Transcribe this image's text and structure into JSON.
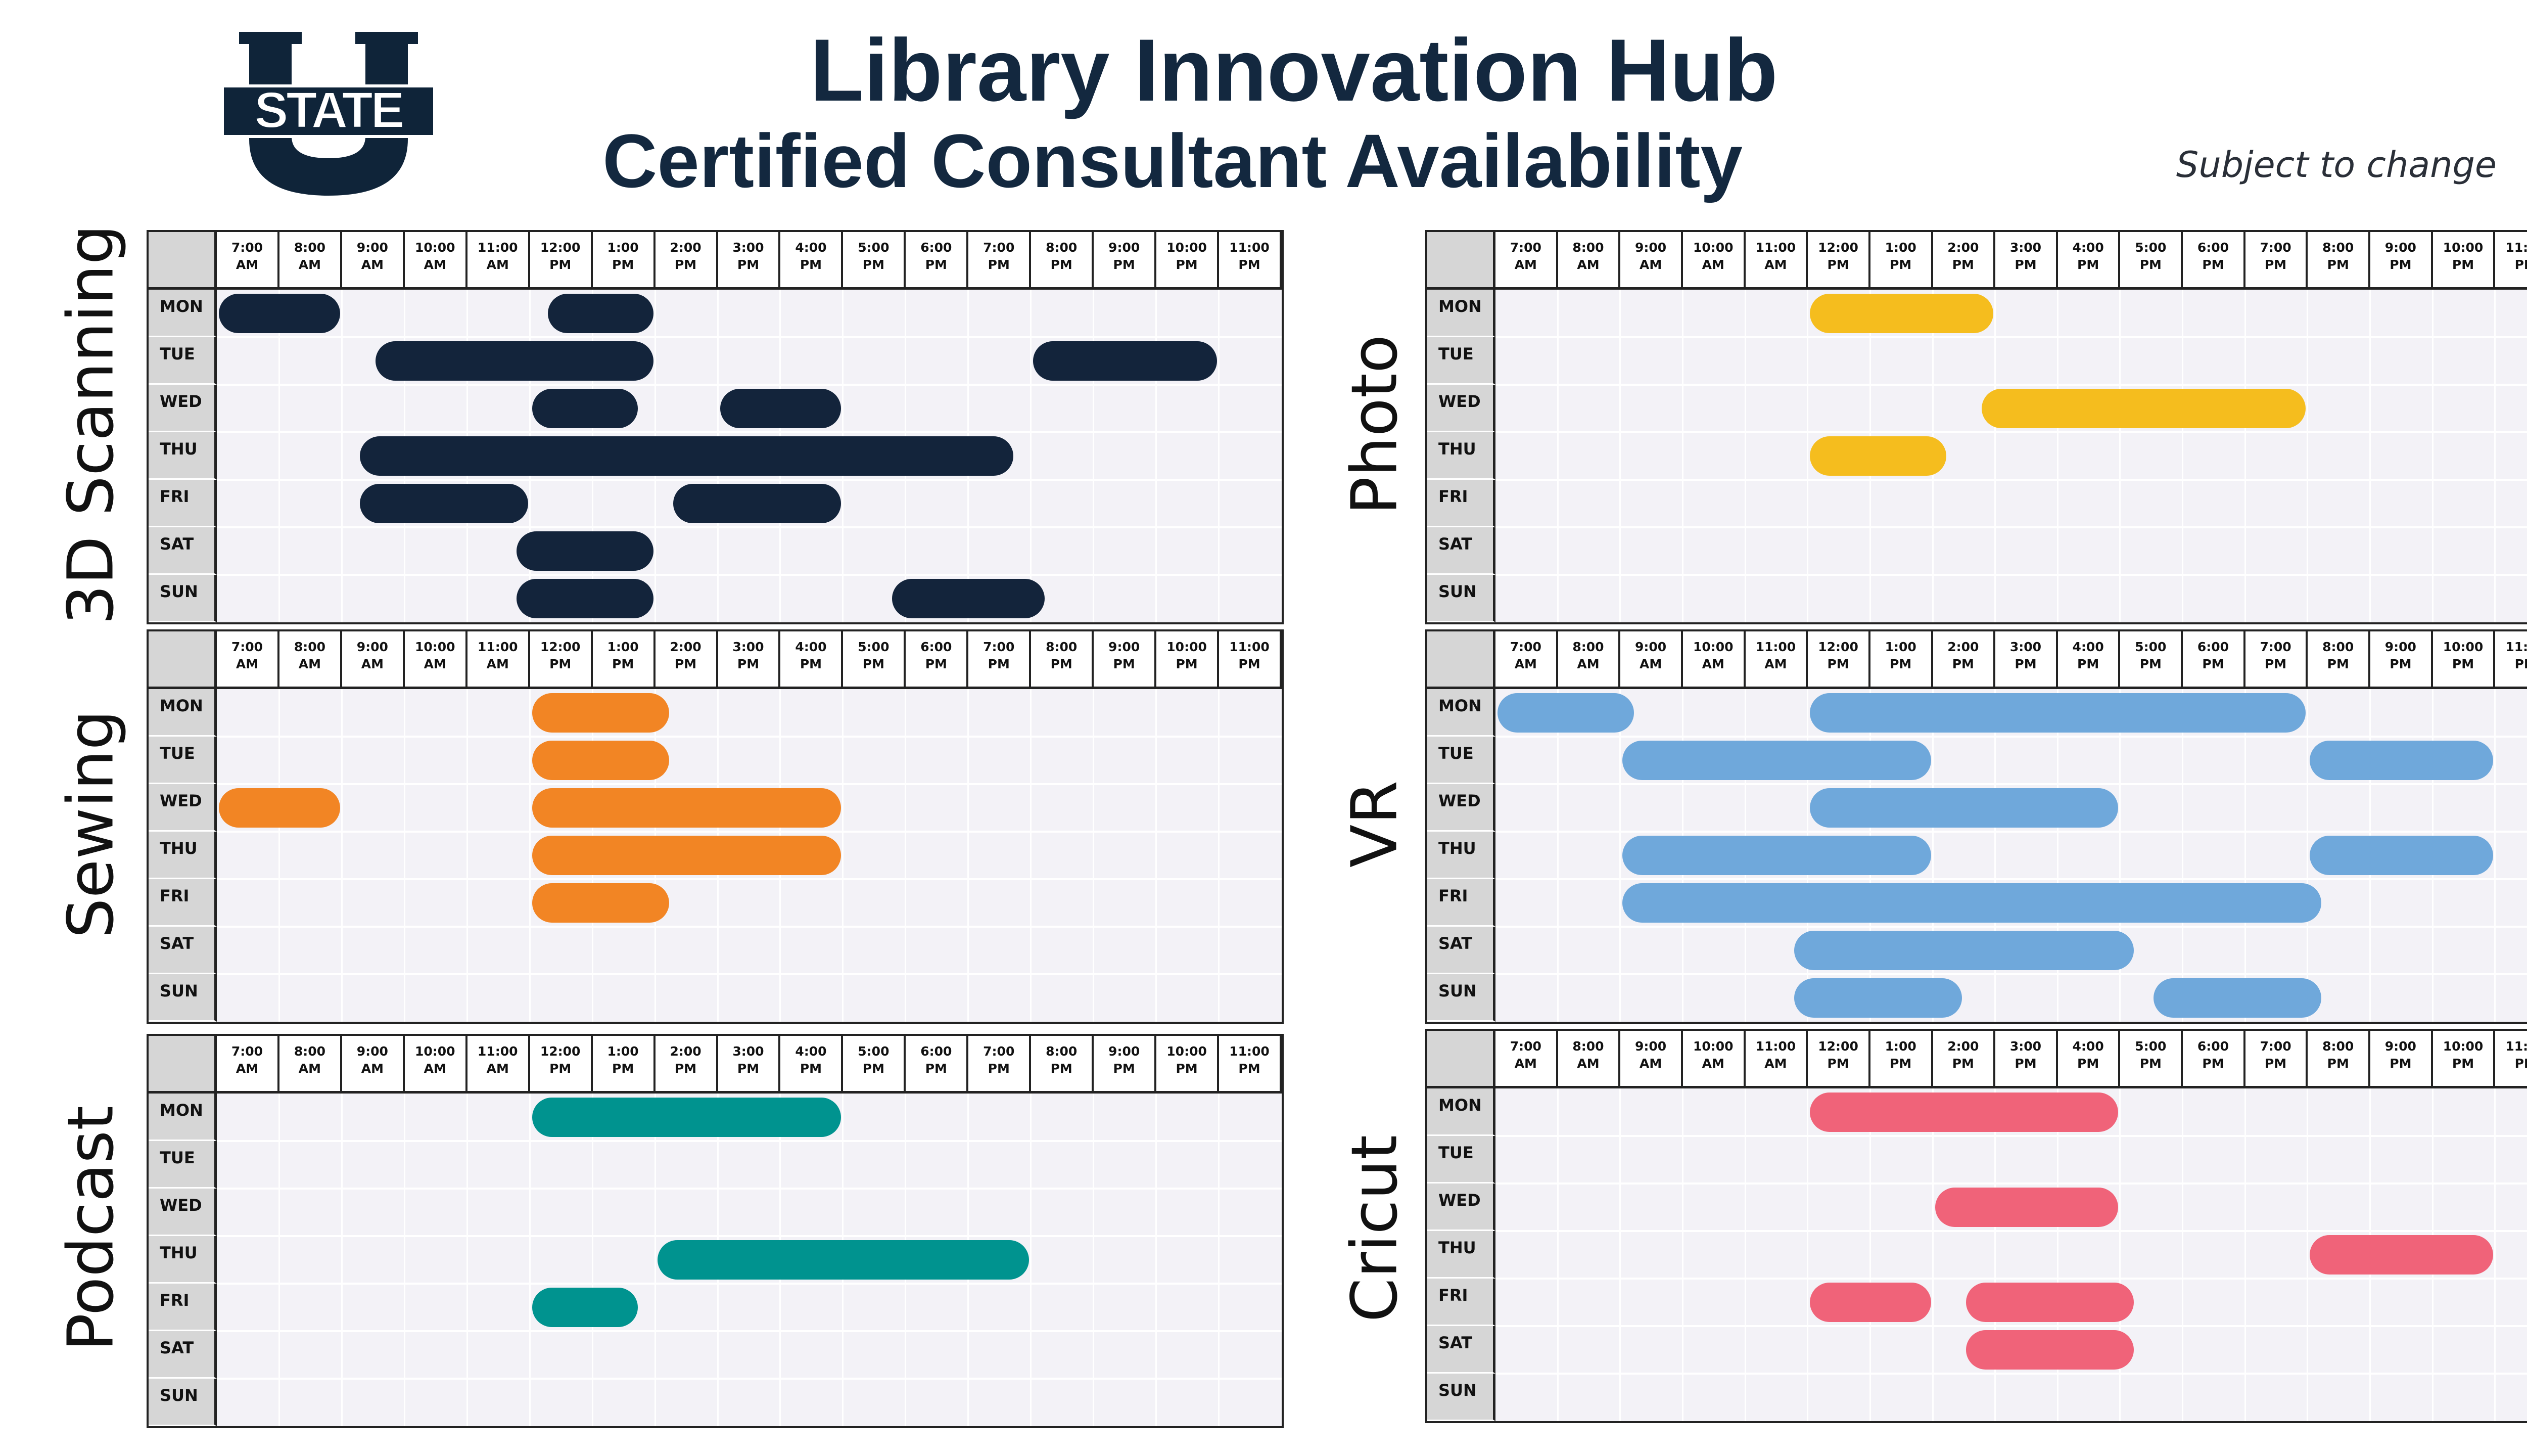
{
  "header": {
    "title": "Library Innovation Hub",
    "subtitle": "Certified Consultant Availability",
    "note": "Subject to change",
    "logo_text": "STATE",
    "logo_color": "#0f2439"
  },
  "time_labels": [
    [
      "7:00",
      "AM"
    ],
    [
      "8:00",
      "AM"
    ],
    [
      "9:00",
      "AM"
    ],
    [
      "10:00",
      "AM"
    ],
    [
      "11:00",
      "AM"
    ],
    [
      "12:00",
      "PM"
    ],
    [
      "1:00",
      "PM"
    ],
    [
      "2:00",
      "PM"
    ],
    [
      "3:00",
      "PM"
    ],
    [
      "4:00",
      "PM"
    ],
    [
      "5:00",
      "PM"
    ],
    [
      "6:00",
      "PM"
    ],
    [
      "7:00",
      "PM"
    ],
    [
      "8:00",
      "PM"
    ],
    [
      "9:00",
      "PM"
    ],
    [
      "10:00",
      "PM"
    ],
    [
      "11:00",
      "PM"
    ]
  ],
  "days": [
    "MON",
    "TUE",
    "WED",
    "THU",
    "FRI",
    "SAT",
    "SUN"
  ],
  "schedules": [
    {
      "name": "3D Scanning",
      "color": "#13243b",
      "slots": [
        {
          "day": "MON",
          "start": "7:00 AM",
          "end": "9:00 AM"
        },
        {
          "day": "MON",
          "start": "12:15 PM",
          "end": "2:00 PM"
        },
        {
          "day": "TUE",
          "start": "9:30 AM",
          "end": "2:00 PM"
        },
        {
          "day": "TUE",
          "start": "8:00 PM",
          "end": "11:00 PM"
        },
        {
          "day": "WED",
          "start": "12:00 PM",
          "end": "1:45 PM"
        },
        {
          "day": "WED",
          "start": "3:00 PM",
          "end": "5:00 PM"
        },
        {
          "day": "THU",
          "start": "9:15 AM",
          "end": "7:45 PM"
        },
        {
          "day": "FRI",
          "start": "9:15 AM",
          "end": "12:00 PM"
        },
        {
          "day": "FRI",
          "start": "2:15 PM",
          "end": "5:00 PM"
        },
        {
          "day": "SAT",
          "start": "11:45 AM",
          "end": "2:00 PM"
        },
        {
          "day": "SUN",
          "start": "11:45 AM",
          "end": "2:00 PM"
        },
        {
          "day": "SUN",
          "start": "5:45 PM",
          "end": "8:15 PM"
        }
      ]
    },
    {
      "name": "Photo",
      "color": "#f5bd1e",
      "slots": [
        {
          "day": "MON",
          "start": "12:00 PM",
          "end": "3:00 PM"
        },
        {
          "day": "WED",
          "start": "2:45 PM",
          "end": "8:00 PM"
        },
        {
          "day": "THU",
          "start": "12:00 PM",
          "end": "2:15 PM"
        }
      ]
    },
    {
      "name": "Sewing",
      "color": "#f28524",
      "slots": [
        {
          "day": "MON",
          "start": "12:00 PM",
          "end": "2:15 PM"
        },
        {
          "day": "TUE",
          "start": "12:00 PM",
          "end": "2:15 PM"
        },
        {
          "day": "WED",
          "start": "7:00 AM",
          "end": "9:00 AM"
        },
        {
          "day": "WED",
          "start": "12:00 PM",
          "end": "5:00 PM"
        },
        {
          "day": "THU",
          "start": "12:00 PM",
          "end": "5:00 PM"
        },
        {
          "day": "FRI",
          "start": "12:00 PM",
          "end": "2:15 PM"
        }
      ]
    },
    {
      "name": "VR",
      "color": "#6fa8db",
      "slots": [
        {
          "day": "MON",
          "start": "7:00 AM",
          "end": "9:15 AM"
        },
        {
          "day": "MON",
          "start": "12:00 PM",
          "end": "8:00 PM"
        },
        {
          "day": "TUE",
          "start": "9:00 AM",
          "end": "2:00 PM"
        },
        {
          "day": "TUE",
          "start": "8:00 PM",
          "end": "11:00 PM"
        },
        {
          "day": "WED",
          "start": "12:00 PM",
          "end": "5:00 PM"
        },
        {
          "day": "THU",
          "start": "9:00 AM",
          "end": "2:00 PM"
        },
        {
          "day": "THU",
          "start": "8:00 PM",
          "end": "11:00 PM"
        },
        {
          "day": "FRI",
          "start": "9:00 AM",
          "end": "8:15 PM"
        },
        {
          "day": "SAT",
          "start": "11:45 AM",
          "end": "5:15 PM"
        },
        {
          "day": "SUN",
          "start": "11:45 AM",
          "end": "2:30 PM"
        },
        {
          "day": "SUN",
          "start": "5:30 PM",
          "end": "8:15 PM"
        }
      ]
    },
    {
      "name": "Podcast",
      "color": "#00938f",
      "slots": [
        {
          "day": "MON",
          "start": "12:00 PM",
          "end": "5:00 PM"
        },
        {
          "day": "THU",
          "start": "2:00 PM",
          "end": "8:00 PM"
        },
        {
          "day": "FRI",
          "start": "12:00 PM",
          "end": "1:45 PM"
        }
      ]
    },
    {
      "name": "Cricut",
      "color": "#f06379",
      "slots": [
        {
          "day": "MON",
          "start": "12:00 PM",
          "end": "5:00 PM"
        },
        {
          "day": "WED",
          "start": "2:00 PM",
          "end": "5:00 PM"
        },
        {
          "day": "THU",
          "start": "8:00 PM",
          "end": "11:00 PM"
        },
        {
          "day": "FRI",
          "start": "12:00 PM",
          "end": "2:00 PM"
        },
        {
          "day": "FRI",
          "start": "2:30 PM",
          "end": "5:15 PM"
        },
        {
          "day": "SAT",
          "start": "2:30 PM",
          "end": "5:15 PM"
        }
      ]
    }
  ]
}
